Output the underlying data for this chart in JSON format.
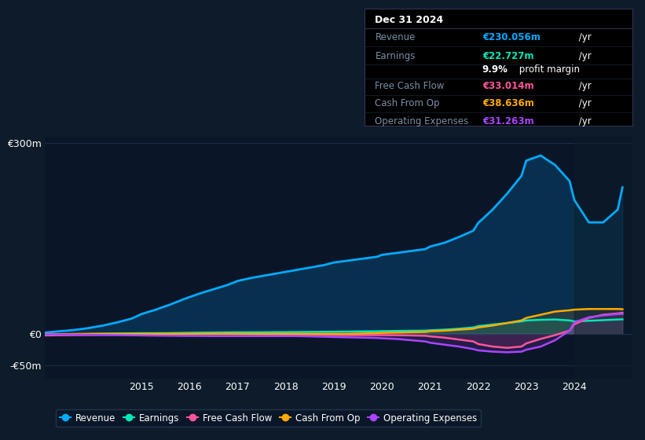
{
  "bg_color": "#0d1b2a",
  "plot_bg_color": "#0a1628",
  "grid_color": "#1a2d45",
  "text_color": "#ffffff",
  "dim_text_color": "#7a8fa8",
  "years": [
    2013.0,
    2013.3,
    2013.6,
    2013.9,
    2014.2,
    2014.5,
    2014.8,
    2015.0,
    2015.3,
    2015.6,
    2015.9,
    2016.2,
    2016.5,
    2016.8,
    2017.0,
    2017.3,
    2017.6,
    2017.9,
    2018.2,
    2018.5,
    2018.8,
    2019.0,
    2019.3,
    2019.6,
    2019.9,
    2020.0,
    2020.3,
    2020.6,
    2020.9,
    2021.0,
    2021.3,
    2021.6,
    2021.9,
    2022.0,
    2022.3,
    2022.6,
    2022.9,
    2023.0,
    2023.3,
    2023.6,
    2023.9,
    2024.0,
    2024.3,
    2024.6,
    2024.9,
    2025.0
  ],
  "revenue": [
    2,
    4,
    6,
    9,
    13,
    18,
    24,
    31,
    38,
    46,
    55,
    63,
    70,
    77,
    83,
    88,
    92,
    96,
    100,
    104,
    108,
    112,
    115,
    118,
    121,
    124,
    127,
    130,
    133,
    137,
    143,
    152,
    162,
    174,
    195,
    220,
    248,
    272,
    280,
    265,
    240,
    210,
    175,
    175,
    195,
    230
  ],
  "earnings": [
    -1.5,
    -1.2,
    -0.8,
    -0.3,
    0.2,
    0.5,
    0.8,
    1.0,
    1.0,
    1.2,
    1.5,
    1.8,
    2.0,
    2.2,
    2.3,
    2.4,
    2.5,
    2.6,
    2.8,
    3.0,
    3.2,
    3.3,
    3.5,
    3.8,
    4.0,
    4.2,
    4.5,
    4.8,
    5.0,
    5.5,
    6.5,
    8.0,
    10.0,
    12.0,
    14.5,
    17.0,
    19.5,
    21.0,
    22.0,
    22.5,
    21.0,
    19.5,
    20.5,
    21.5,
    22.5,
    22.727
  ],
  "free_cash_flow": [
    -2.5,
    -2.2,
    -2.0,
    -1.8,
    -1.5,
    -1.2,
    -0.8,
    -0.5,
    -0.5,
    -0.3,
    -0.2,
    -0.2,
    -0.2,
    -0.2,
    -0.3,
    -0.5,
    -0.8,
    -1.0,
    -1.2,
    -1.5,
    -1.8,
    -2.0,
    -2.0,
    -2.0,
    -2.0,
    -2.0,
    -2.2,
    -2.5,
    -3.0,
    -4.0,
    -6.0,
    -9.0,
    -12.0,
    -16.0,
    -20.0,
    -22.0,
    -20.0,
    -15.0,
    -8.0,
    -2.0,
    5.0,
    15.0,
    25.0,
    30.0,
    32.0,
    33.014
  ],
  "cash_from_op": [
    -0.8,
    -0.5,
    -0.2,
    0.0,
    0.0,
    0.0,
    0.0,
    0.0,
    0.0,
    0.0,
    0.0,
    0.0,
    0.0,
    0.0,
    0.0,
    0.0,
    0.0,
    0.0,
    0.0,
    0.0,
    0.0,
    0.0,
    0.0,
    0.5,
    1.0,
    1.5,
    2.0,
    2.5,
    3.0,
    4.0,
    5.0,
    6.5,
    8.0,
    10.0,
    13.0,
    17.0,
    21.0,
    25.0,
    30.0,
    35.0,
    37.0,
    38.0,
    39.0,
    39.0,
    39.0,
    38.636
  ],
  "operating_expenses": [
    -1.0,
    -1.0,
    -1.2,
    -1.5,
    -1.8,
    -2.0,
    -2.3,
    -2.5,
    -2.8,
    -3.0,
    -3.2,
    -3.3,
    -3.5,
    -3.5,
    -3.5,
    -3.5,
    -3.5,
    -3.5,
    -3.5,
    -4.0,
    -4.5,
    -5.0,
    -5.5,
    -6.0,
    -6.5,
    -7.0,
    -8.0,
    -10.0,
    -12.0,
    -14.0,
    -17.0,
    -20.0,
    -24.0,
    -26.0,
    -28.0,
    -29.0,
    -28.0,
    -25.0,
    -20.0,
    -10.0,
    5.0,
    18.0,
    26.0,
    29.0,
    31.0,
    31.263
  ],
  "revenue_color": "#00aaff",
  "earnings_color": "#00e8b8",
  "fcf_color": "#ff5599",
  "cashop_color": "#ffaa00",
  "opex_color": "#aa44ff",
  "ylim": [
    -70,
    310
  ],
  "xlim": [
    2013.0,
    2025.2
  ],
  "yticks": [
    -50,
    0,
    300
  ],
  "ytick_labels": [
    "-€50m",
    "€0",
    "€300m"
  ],
  "xtick_years": [
    2015,
    2016,
    2017,
    2018,
    2019,
    2020,
    2021,
    2022,
    2023,
    2024
  ],
  "forecast_start": 2024.0,
  "info_box": {
    "date": "Dec 31 2024",
    "revenue_val": "€230.056m",
    "earnings_val": "€22.727m",
    "profit_margin": "9.9%",
    "fcf_val": "€33.014m",
    "cashop_val": "€38.636m",
    "opex_val": "€31.263m"
  },
  "legend_items": [
    "Revenue",
    "Earnings",
    "Free Cash Flow",
    "Cash From Op",
    "Operating Expenses"
  ],
  "legend_colors": [
    "#00aaff",
    "#00e8b8",
    "#ff5599",
    "#ffaa00",
    "#aa44ff"
  ]
}
